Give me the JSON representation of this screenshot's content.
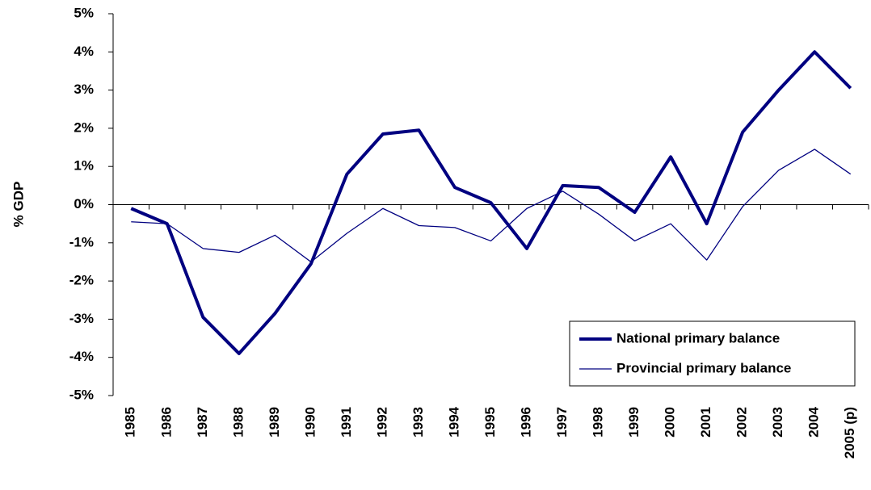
{
  "chart_data": {
    "type": "line",
    "y_label": "% GDP",
    "categories": [
      "1985",
      "1986",
      "1987",
      "1988",
      "1989",
      "1990",
      "1991",
      "1992",
      "1993",
      "1994",
      "1995",
      "1996",
      "1997",
      "1998",
      "1999",
      "2000",
      "2001",
      "2002",
      "2003",
      "2004",
      "2005 (p)"
    ],
    "series": [
      {
        "name": "National primary balance",
        "color": "#000080",
        "line_width": 4,
        "values": [
          -0.1,
          -0.5,
          -2.95,
          -3.9,
          -2.85,
          -1.55,
          0.8,
          1.85,
          1.95,
          0.45,
          0.05,
          -1.15,
          0.5,
          0.45,
          -0.2,
          1.25,
          -0.5,
          1.9,
          3.0,
          4.0,
          3.05
        ]
      },
      {
        "name": "Provincial primary balance",
        "color": "#000080",
        "line_width": 1.3,
        "values": [
          -0.45,
          -0.5,
          -1.15,
          -1.25,
          -0.8,
          -1.5,
          -0.75,
          -0.1,
          -0.55,
          -0.6,
          -0.95,
          -0.1,
          0.35,
          -0.25,
          -0.95,
          -0.5,
          -1.45,
          -0.05,
          0.9,
          1.45,
          0.8
        ]
      }
    ],
    "ylim": [
      -5,
      5
    ],
    "yticks": [
      {
        "value": -5,
        "label": "-5%"
      },
      {
        "value": -4,
        "label": "-4%"
      },
      {
        "value": -3,
        "label": "-3%"
      },
      {
        "value": -2,
        "label": "-2%"
      },
      {
        "value": -1,
        "label": "-1%"
      },
      {
        "value": 0,
        "label": "0%"
      },
      {
        "value": 1,
        "label": "1%"
      },
      {
        "value": 2,
        "label": "2%"
      },
      {
        "value": 3,
        "label": "3%"
      },
      {
        "value": 4,
        "label": "4%"
      },
      {
        "value": 5,
        "label": "5%"
      }
    ],
    "grid": false,
    "legend": "lower right"
  }
}
